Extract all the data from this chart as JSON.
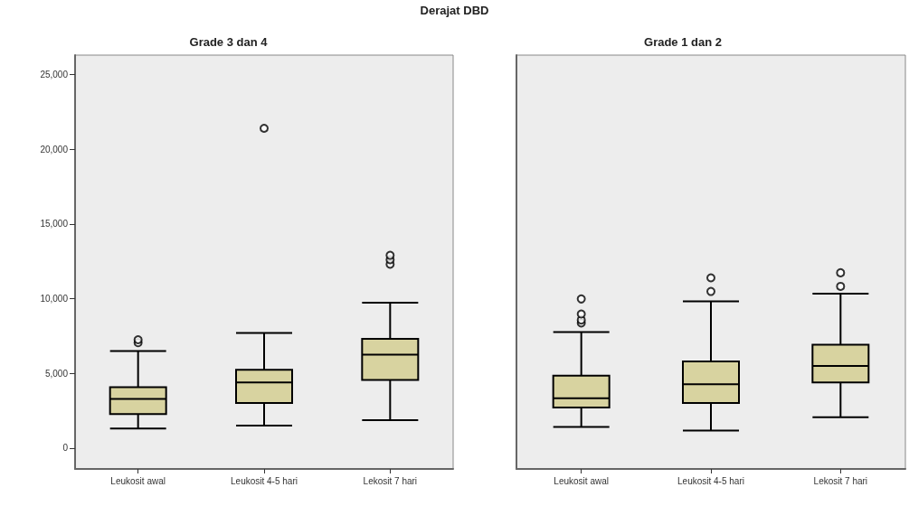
{
  "chart_data": [
    {
      "type": "box",
      "title": "Grade 3 dan 4",
      "annotations": [
        "Derajat DBD"
      ],
      "categories": [
        "Leukosit awal",
        "Leukosit 4-5 hari",
        "Lekosit 7 hari"
      ],
      "marker": "circle",
      "grid": false,
      "ylim": [
        -1400,
        26300
      ],
      "yticks": [
        {
          "value": 0,
          "label": "0"
        },
        {
          "value": 5000,
          "label": "5,000"
        },
        {
          "value": 10000,
          "label": "10,000"
        },
        {
          "value": 15000,
          "label": "15,000"
        },
        {
          "value": 20000,
          "label": "20,000"
        },
        {
          "value": 25000,
          "label": "25,000"
        }
      ],
      "series": [
        {
          "color": "#d8d3a0",
          "boxes": [
            {
              "low": 1310,
              "q1": 2280,
              "median": 3290,
              "q3": 4070,
              "high": 6490,
              "outliers": [
                7050,
                7250
              ]
            },
            {
              "low": 1510,
              "q1": 3020,
              "median": 4390,
              "q3": 5240,
              "high": 7700,
              "outliers": [
                21400
              ]
            },
            {
              "low": 1870,
              "q1": 4560,
              "median": 6250,
              "q3": 7310,
              "high": 9730,
              "outliers": [
                12300,
                12600,
                12900
              ]
            }
          ]
        }
      ]
    },
    {
      "type": "box",
      "title": "Grade 1 dan 2",
      "categories": [
        "Leukosit awal",
        "Leukosit 4-5 hari",
        "Lekosit 7 hari"
      ],
      "marker": "circle",
      "grid": false,
      "tick_labels": "x",
      "ylim": [
        -1400,
        26300
      ],
      "series": [
        {
          "color": "#d8d3a0",
          "boxes": [
            {
              "low": 1410,
              "q1": 2720,
              "median": 3330,
              "q3": 4840,
              "high": 7760,
              "outliers": [
                8370,
                8570,
                8970,
                9980
              ]
            },
            {
              "low": 1170,
              "q1": 3020,
              "median": 4270,
              "q3": 5800,
              "high": 9820,
              "outliers": [
                10480,
                11390
              ]
            },
            {
              "low": 2060,
              "q1": 4390,
              "median": 5500,
              "q3": 6920,
              "high": 10340,
              "outliers": [
                10820,
                11730
              ]
            }
          ]
        }
      ]
    }
  ]
}
